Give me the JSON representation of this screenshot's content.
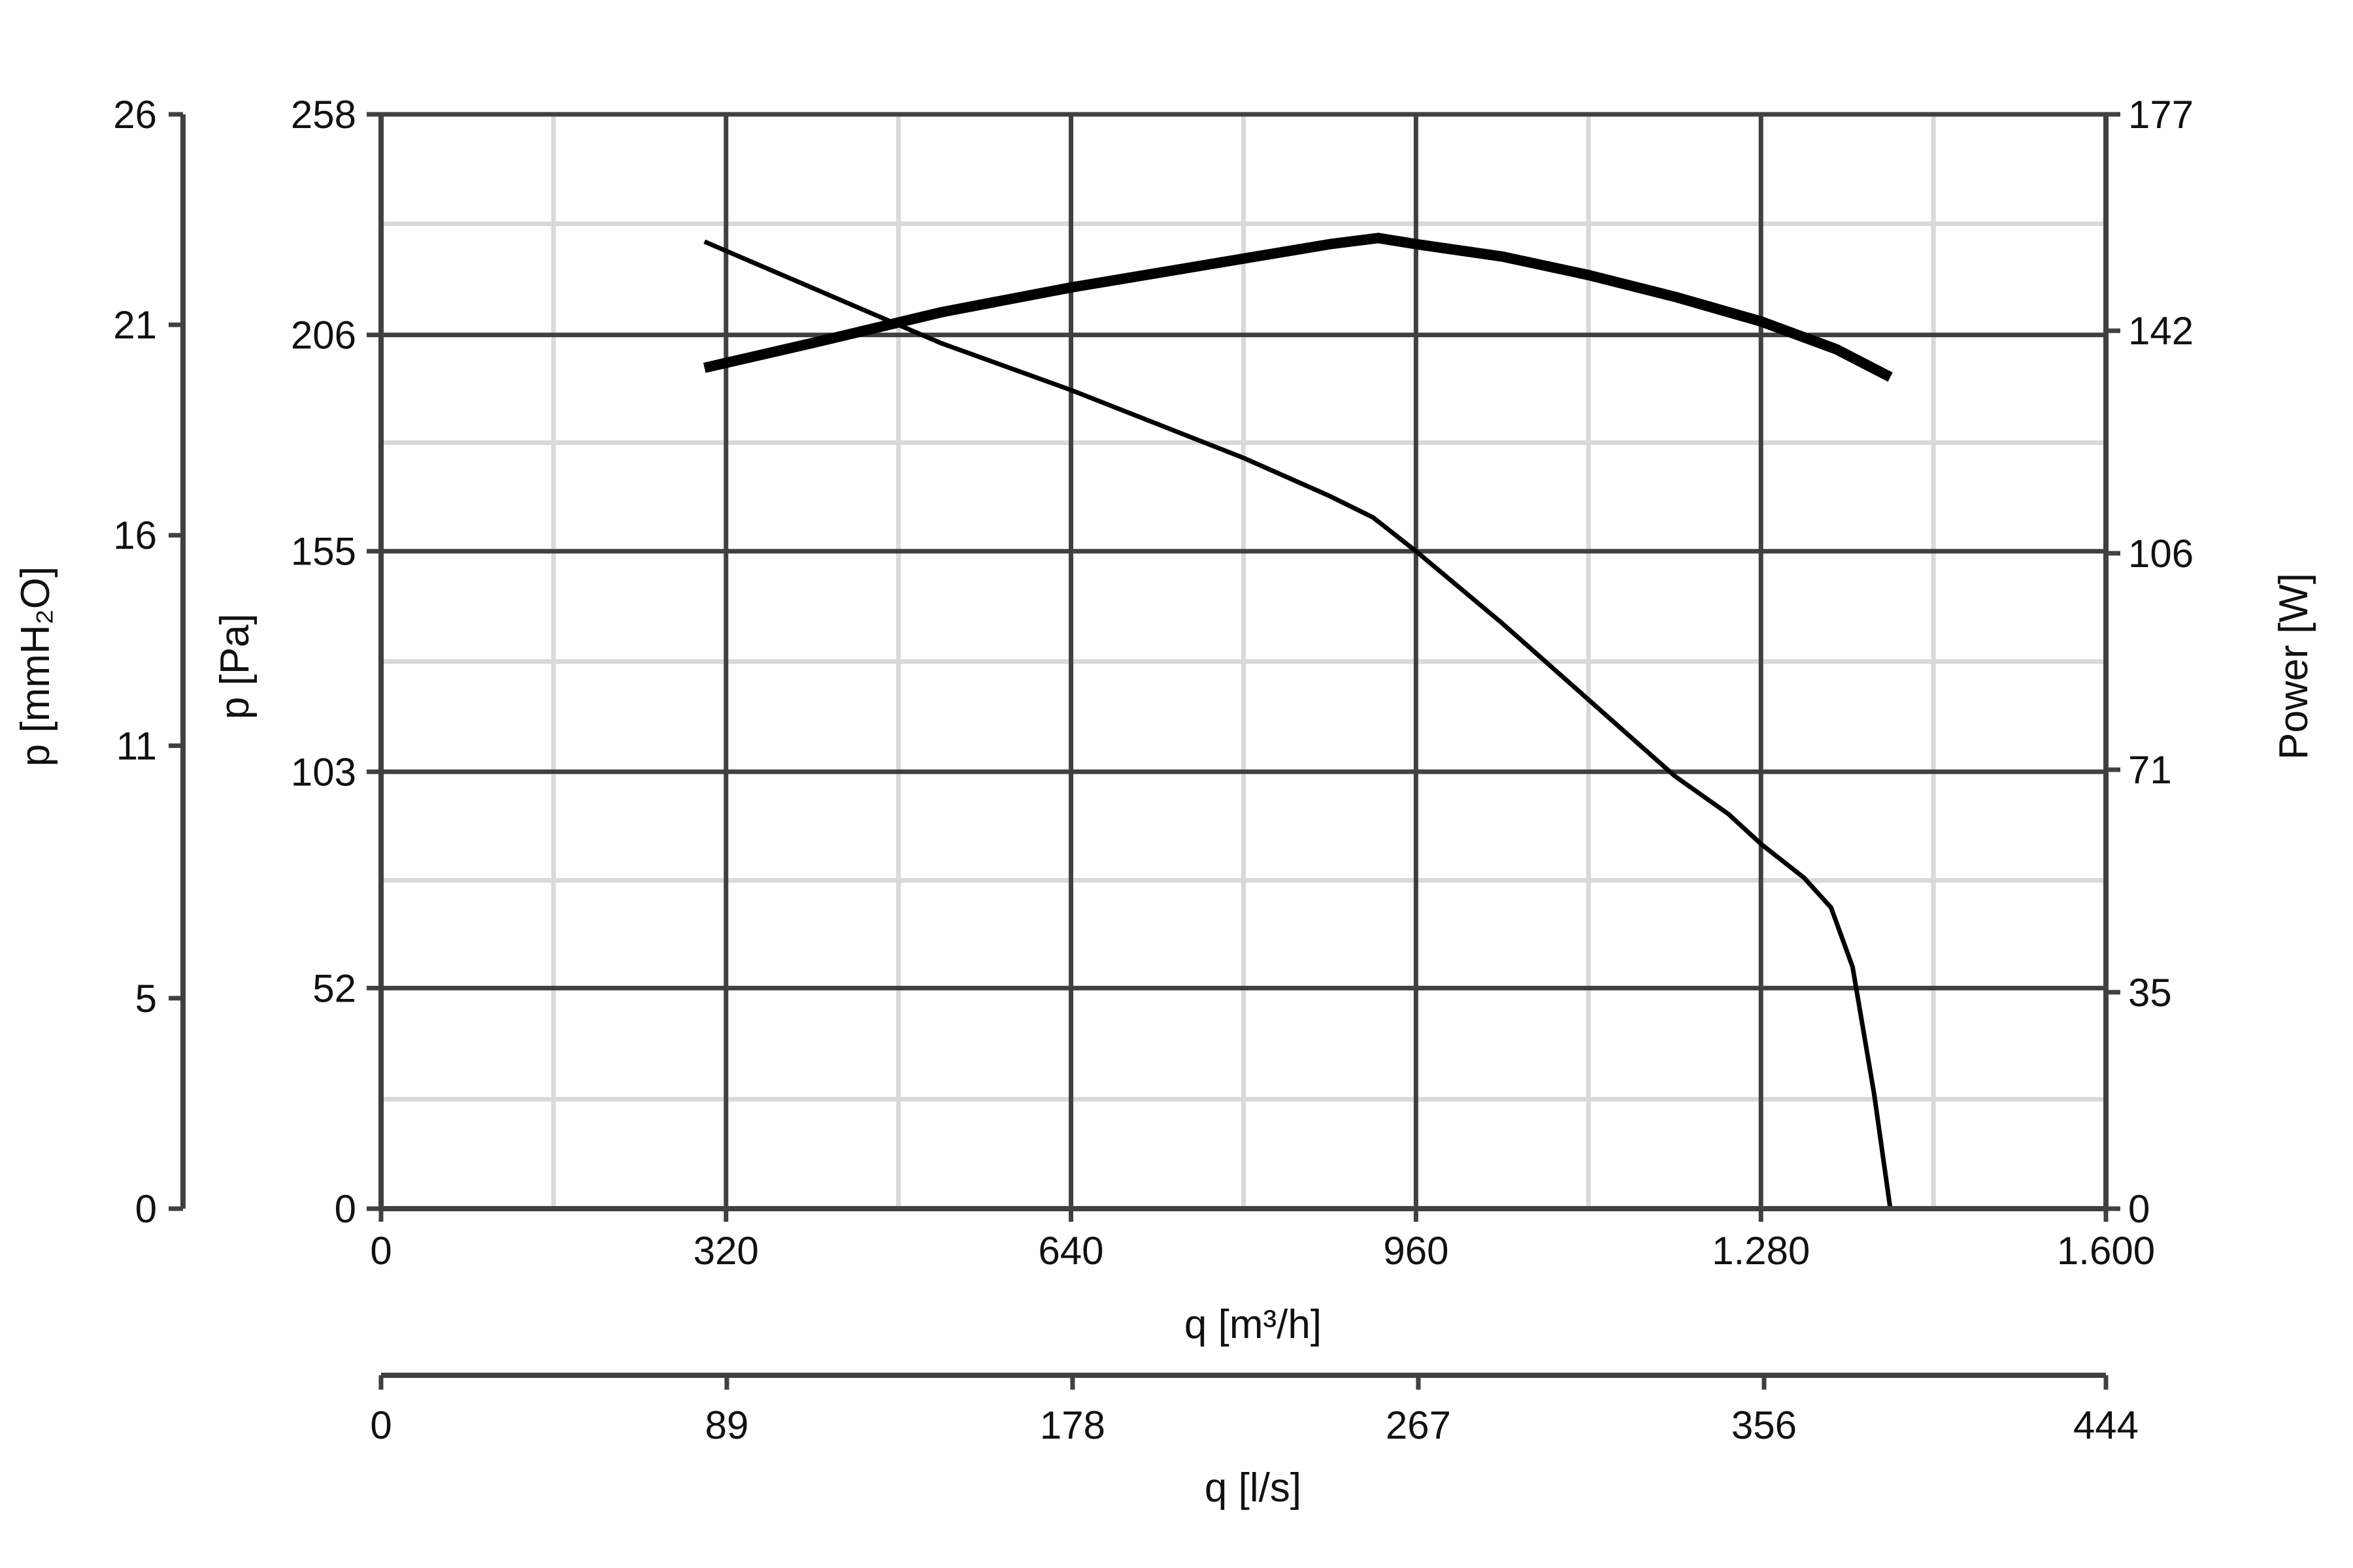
{
  "chart_data": {
    "type": "line",
    "title": "",
    "x_axis": {
      "label": "q [m³/h]",
      "range": [
        0,
        1600
      ],
      "ticks": [
        0,
        320,
        640,
        960,
        1280,
        1600
      ],
      "tick_labels": [
        "0",
        "320",
        "640",
        "960",
        "1.280",
        "1.600"
      ],
      "minor_step": 160
    },
    "x2_axis": {
      "label": "q [l/s]",
      "range": [
        0,
        444
      ],
      "ticks": [
        0,
        89,
        178,
        267,
        356,
        444
      ],
      "tick_labels": [
        "0",
        "89",
        "178",
        "267",
        "356",
        "444"
      ]
    },
    "y_axis": {
      "label": "p [Pa]",
      "range": [
        0,
        258
      ],
      "ticks": [
        0,
        52,
        103,
        155,
        206,
        258
      ],
      "tick_labels": [
        "0",
        "52",
        "103",
        "155",
        "206",
        "258"
      ],
      "minor_step": 25.8
    },
    "y_outer_axis": {
      "label": "p [mmH₂O]",
      "range": [
        0,
        26
      ],
      "ticks": [
        0,
        5,
        11,
        16,
        21,
        26
      ],
      "tick_labels": [
        "0",
        "5",
        "11",
        "16",
        "21",
        "26"
      ]
    },
    "y_right_axis": {
      "label": "Power [W]",
      "range": [
        0,
        177
      ],
      "ticks": [
        0,
        35,
        71,
        106,
        142,
        177
      ],
      "tick_labels": [
        "0",
        "35",
        "71",
        "106",
        "142",
        "177"
      ]
    },
    "grid": true,
    "legend": "none",
    "series": [
      {
        "axis": "y",
        "stroke": "#000000",
        "points": [
          [
            300,
            228
          ],
          [
            520,
            204
          ],
          [
            640,
            193
          ],
          [
            800,
            177
          ],
          [
            880,
            168
          ],
          [
            920,
            163
          ],
          [
            960,
            155
          ],
          [
            1040,
            138
          ],
          [
            1120,
            120
          ],
          [
            1200,
            102
          ],
          [
            1250,
            93
          ],
          [
            1280,
            86
          ],
          [
            1320,
            78
          ],
          [
            1345,
            71
          ],
          [
            1365,
            57
          ],
          [
            1385,
            27
          ],
          [
            1400,
            0
          ]
        ]
      },
      {
        "axis": "y_right",
        "stroke": "#000000",
        "points": [
          [
            300,
            136
          ],
          [
            400,
            140
          ],
          [
            520,
            145
          ],
          [
            640,
            149
          ],
          [
            760,
            152.5
          ],
          [
            880,
            156
          ],
          [
            925,
            157
          ],
          [
            960,
            156
          ],
          [
            1040,
            154
          ],
          [
            1120,
            151
          ],
          [
            1200,
            147.5
          ],
          [
            1280,
            143.5
          ],
          [
            1350,
            139
          ],
          [
            1400,
            134.5
          ]
        ]
      }
    ]
  }
}
